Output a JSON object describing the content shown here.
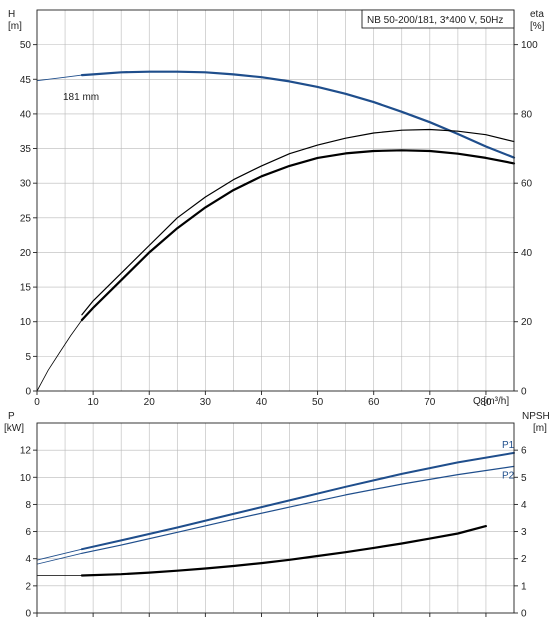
{
  "chart_data": {
    "type": "line",
    "title_box": "NB 50-200/181, 3*400 V, 50Hz",
    "grid": true,
    "upper": {
      "xlabel": "Q [m³/h]",
      "xlim": [
        0,
        85
      ],
      "xticks": [
        0,
        10,
        20,
        30,
        40,
        50,
        60,
        70,
        80
      ],
      "ylabel_left": [
        "H",
        "[m]"
      ],
      "ylim_left": [
        0,
        55
      ],
      "yticks_left": [
        0,
        5,
        10,
        15,
        20,
        25,
        30,
        35,
        40,
        45,
        50
      ],
      "ylabel_right": [
        "eta",
        "[%]"
      ],
      "ylim_right": [
        0,
        110
      ],
      "yticks_right": [
        0,
        20,
        40,
        60,
        80,
        100
      ],
      "curve_label": "181 mm",
      "series": [
        {
          "axis": "left",
          "color": "#1f4e8c",
          "width": 2.2,
          "x": [
            8,
            10,
            15,
            20,
            25,
            30,
            35,
            40,
            45,
            50,
            55,
            60,
            65,
            70,
            75,
            80,
            85
          ],
          "y": [
            45.6,
            45.7,
            46.0,
            46.1,
            46.1,
            46.0,
            45.7,
            45.3,
            44.7,
            43.9,
            42.9,
            41.7,
            40.3,
            38.8,
            37.1,
            35.3,
            33.7
          ]
        },
        {
          "axis": "left",
          "color": "#1f4e8c",
          "width": 0.9,
          "x": [
            0,
            4,
            8
          ],
          "y": [
            44.8,
            45.2,
            45.6
          ]
        },
        {
          "axis": "right",
          "color": "#000000",
          "width": 1.2,
          "x": [
            8,
            10,
            15,
            20,
            25,
            30,
            35,
            40,
            45,
            50,
            55,
            60,
            65,
            70,
            75,
            80,
            85
          ],
          "y": [
            22,
            26,
            34,
            42,
            50,
            56,
            61,
            65,
            68.5,
            71,
            73,
            74.5,
            75.3,
            75.5,
            75,
            74,
            72
          ]
        },
        {
          "axis": "right",
          "color": "#000000",
          "width": 2.2,
          "x": [
            8,
            10,
            15,
            20,
            25,
            30,
            35,
            40,
            45,
            50,
            55,
            60,
            65,
            70,
            75,
            80,
            85
          ],
          "y": [
            20.5,
            24,
            32,
            40,
            47,
            53,
            58,
            62,
            65,
            67.3,
            68.6,
            69.3,
            69.5,
            69.3,
            68.5,
            67.3,
            65.7
          ]
        },
        {
          "axis": "right",
          "color": "#000000",
          "width": 0.8,
          "x": [
            0,
            2,
            4,
            6,
            8
          ],
          "y": [
            0,
            6,
            11,
            16,
            20.5
          ]
        }
      ]
    },
    "lower": {
      "xlim": [
        0,
        85
      ],
      "ylabel_left": [
        "P",
        "[kW]"
      ],
      "ylim_left": [
        0,
        14
      ],
      "yticks_left": [
        0,
        2,
        4,
        6,
        8,
        10,
        12
      ],
      "ylabel_right": [
        "NPSH",
        "[m]"
      ],
      "ylim_right": [
        0,
        7
      ],
      "yticks_right": [
        0,
        1,
        2,
        3,
        4,
        5,
        6
      ],
      "series": [
        {
          "name": "P1",
          "axis": "left",
          "color": "#1f4e8c",
          "width": 2.0,
          "x": [
            8,
            15,
            25,
            35,
            45,
            55,
            65,
            75,
            85
          ],
          "y": [
            4.7,
            5.35,
            6.3,
            7.3,
            8.3,
            9.3,
            10.25,
            11.1,
            11.8
          ]
        },
        {
          "name": "P2",
          "axis": "left",
          "color": "#1f4e8c",
          "width": 1.2,
          "x": [
            8,
            15,
            25,
            35,
            45,
            55,
            65,
            75,
            85
          ],
          "y": [
            4.4,
            5.0,
            5.95,
            6.9,
            7.8,
            8.7,
            9.5,
            10.2,
            10.8
          ]
        },
        {
          "axis": "left",
          "color": "#1f4e8c",
          "width": 0.9,
          "x": [
            0,
            8
          ],
          "y": [
            3.9,
            4.7
          ]
        },
        {
          "axis": "left",
          "color": "#1f4e8c",
          "width": 0.8,
          "x": [
            0,
            8
          ],
          "y": [
            3.6,
            4.4
          ]
        },
        {
          "axis": "right",
          "color": "#000000",
          "width": 2.2,
          "x": [
            8,
            15,
            20,
            25,
            30,
            35,
            40,
            45,
            50,
            55,
            60,
            65,
            70,
            75,
            80
          ],
          "y": [
            1.38,
            1.43,
            1.49,
            1.56,
            1.64,
            1.73,
            1.84,
            1.96,
            2.1,
            2.24,
            2.4,
            2.56,
            2.74,
            2.93,
            3.2
          ]
        },
        {
          "axis": "right",
          "color": "#000000",
          "width": 0.8,
          "x": [
            0,
            8
          ],
          "y": [
            1.38,
            1.38
          ]
        }
      ]
    }
  }
}
